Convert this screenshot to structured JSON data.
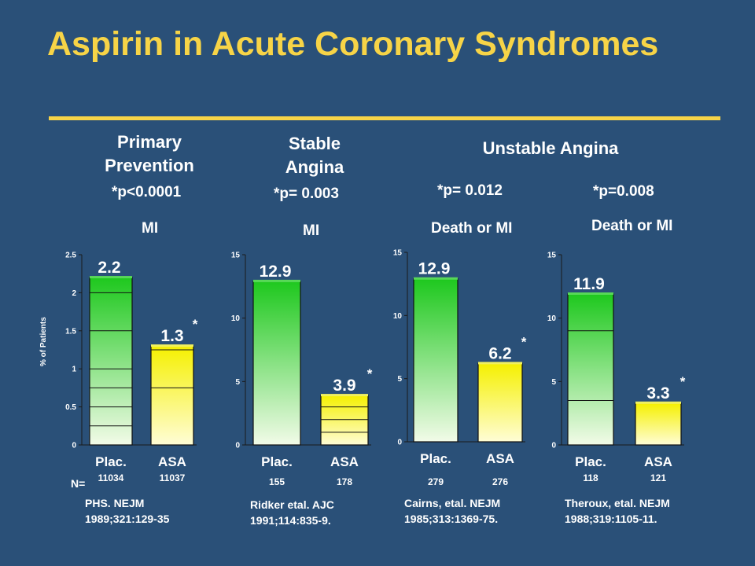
{
  "title": "Aspirin in Acute Coronary Syndromes",
  "colors": {
    "background": "#2a5078",
    "title": "#f7d447",
    "placebo_bar": "#1ec81e",
    "aspirin_bar": "#f5f000",
    "text": "#ffffff"
  },
  "headings": {
    "primary": "Primary Prevention",
    "stable": "Stable Angina",
    "unstable": "Unstable Angina"
  },
  "ylabel": "% of Patients",
  "n_label": "N=",
  "chart_data": [
    {
      "type": "bar",
      "pvalue": "*p<0.0001",
      "endpoint": "MI",
      "categories": [
        "Plac.",
        "ASA"
      ],
      "values": [
        2.2,
        1.3
      ],
      "value_labels": [
        "2.2",
        "1.3"
      ],
      "n": [
        "11034",
        "11037"
      ],
      "ylim": [
        0,
        2.5
      ],
      "yticks": [
        0,
        0.5,
        1,
        1.5,
        2,
        2.5
      ],
      "ytick_labels": [
        "0",
        "0.5",
        "1",
        "1.5",
        "2",
        "2.5"
      ],
      "significant": "ASA",
      "reference": "PHS. NEJM\n 1989;321:129-35"
    },
    {
      "type": "bar",
      "pvalue": "*p= 0.003",
      "endpoint": "MI",
      "categories": [
        "Plac.",
        "ASA"
      ],
      "values": [
        12.9,
        3.9
      ],
      "value_labels": [
        "12.9",
        "3.9"
      ],
      "n": [
        "155",
        "178"
      ],
      "ylim": [
        0,
        15
      ],
      "yticks": [
        0,
        5,
        10,
        15
      ],
      "ytick_labels": [
        "0",
        "5",
        "10",
        "15"
      ],
      "significant": "ASA",
      "reference": "Ridker etal. AJC\n1991;114:835-9."
    },
    {
      "type": "bar",
      "pvalue": "*p= 0.012",
      "endpoint": "Death or MI",
      "categories": [
        "Plac.",
        "ASA"
      ],
      "values": [
        12.9,
        6.2
      ],
      "value_labels": [
        "12.9",
        "6.2"
      ],
      "n": [
        "279",
        "276"
      ],
      "ylim": [
        0,
        15
      ],
      "yticks": [
        0,
        5,
        10,
        15
      ],
      "ytick_labels": [
        "0",
        "5",
        "10",
        "15"
      ],
      "significant": "ASA",
      "reference": "Cairns, etal. NEJM\n1985;313:1369-75."
    },
    {
      "type": "bar",
      "pvalue": "*p=0.008",
      "endpoint": "Death or MI",
      "categories": [
        "Plac.",
        "ASA"
      ],
      "values": [
        11.9,
        3.3
      ],
      "value_labels": [
        "11.9",
        "3.3"
      ],
      "n": [
        "118",
        "121"
      ],
      "ylim": [
        0,
        15
      ],
      "yticks": [
        0,
        5,
        10,
        15
      ],
      "ytick_labels": [
        "0",
        "5",
        "10",
        "15"
      ],
      "significant": "ASA",
      "reference": "Theroux, etal. NEJM\n1988;319:1105-11."
    }
  ]
}
